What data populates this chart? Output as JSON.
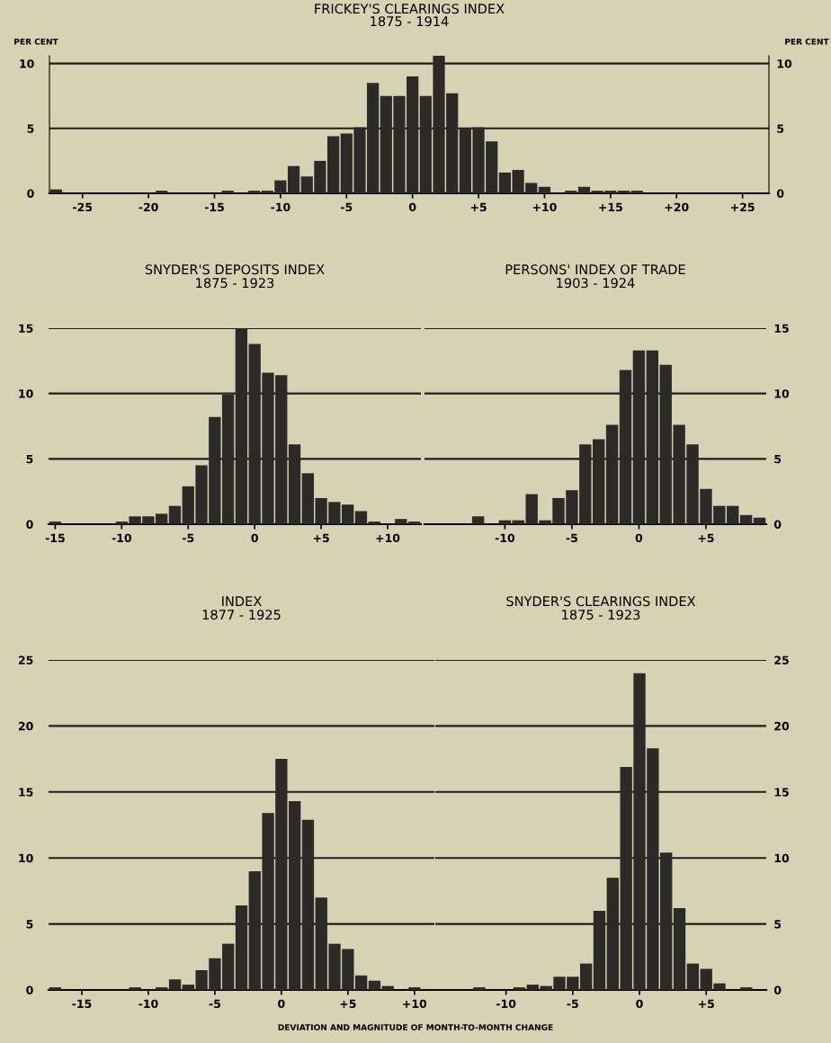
{
  "chart_data": [
    {
      "type": "histogram",
      "title": "FRICKEY'S CLEARINGS INDEX",
      "subtitle": "1875 - 1914",
      "ylabel": "PER CENT",
      "y2label": "PER CENT",
      "bins": [
        -27.5,
        -26.5,
        -25.5,
        -24.5,
        -23.5,
        -22.5,
        -21.5,
        -20.5,
        -19.5,
        -18.5,
        -17.5,
        -16.5,
        -15.5,
        -14.5,
        -13.5,
        -12.5,
        -11.5,
        -10.5,
        -9.5,
        -8.5,
        -7.5,
        -6.5,
        -5.5,
        -4.5,
        -3.5,
        -2.5,
        -1.5,
        -0.5,
        0.5,
        1.5,
        2.5,
        3.5,
        4.5,
        5.5,
        6.5,
        7.5,
        8.5,
        9.5,
        10.5,
        11.5,
        12.5,
        13.5,
        14.5,
        15.5,
        16.5,
        17.5
      ],
      "series": [
        {
          "color": "#2b2a27",
          "axis": "y",
          "values": [
            0.3,
            0,
            0,
            0,
            0,
            0,
            0,
            0,
            0.2,
            0,
            0,
            0,
            0,
            0.2,
            0,
            0.2,
            0.2,
            1.0,
            2.1,
            1.3,
            2.5,
            4.4,
            4.6,
            5.1,
            8.5,
            7.5,
            7.5,
            9.0,
            7.5,
            10.6,
            7.7,
            5.0,
            5.1,
            4.0,
            1.6,
            1.8,
            0.8,
            0.5,
            0,
            0.2,
            0.5,
            0.2,
            0.2,
            0.2,
            0.2
          ]
        }
      ],
      "xlim": [
        -27.5,
        27
      ],
      "xticks": [
        -25,
        -20,
        -15,
        -10,
        -5,
        0,
        {
          "value": 5,
          "label": "+5"
        },
        {
          "value": 10,
          "label": "+10"
        },
        {
          "value": 15,
          "label": "+15"
        },
        {
          "value": 20,
          "label": "+20"
        },
        {
          "value": 25,
          "label": "+25"
        }
      ],
      "ylim": [
        0,
        10.6
      ],
      "yticks": [
        0,
        5,
        10
      ],
      "y2lim": [
        0,
        10.6
      ],
      "y2ticks": [
        0,
        5,
        10
      ],
      "grid": "y"
    },
    {
      "type": "histogram",
      "title": "SNYDER'S DEPOSITS INDEX",
      "subtitle": "1875 - 1923",
      "bins": [
        -15.5,
        -14.5,
        -13.5,
        -12.5,
        -11.5,
        -10.5,
        -9.5,
        -8.5,
        -7.5,
        -6.5,
        -5.5,
        -4.5,
        -3.5,
        -2.5,
        -1.5,
        -0.5,
        0.5,
        1.5,
        2.5,
        3.5,
        4.5,
        5.5,
        6.5,
        7.5,
        8.5,
        9.5,
        10.5,
        11.5,
        12.5
      ],
      "series": [
        {
          "color": "#2b2a27",
          "axis": "y",
          "values": [
            0.2,
            0,
            0,
            0,
            0,
            0.2,
            0.6,
            0.6,
            0.8,
            1.4,
            2.9,
            4.5,
            8.2,
            9.9,
            15.0,
            13.8,
            11.6,
            11.4,
            6.1,
            3.9,
            2.0,
            1.7,
            1.5,
            1.0,
            0.2,
            0,
            0.4,
            0.2
          ]
        }
      ],
      "xlim": [
        -15.5,
        12.5
      ],
      "xticks": [
        -15,
        -10,
        -5,
        0,
        {
          "value": 5,
          "label": "+5"
        },
        {
          "value": 10,
          "label": "+10"
        }
      ],
      "ylim": [
        0,
        15
      ],
      "yticks": [
        0,
        5,
        10,
        15
      ],
      "grid": "y"
    },
    {
      "type": "histogram",
      "title": "PERSONS' INDEX OF TRADE",
      "subtitle": "1903 - 1924",
      "bins": [
        -12.5,
        -11.5,
        -10.5,
        -9.5,
        -8.5,
        -7.5,
        -6.5,
        -5.5,
        -4.5,
        -3.5,
        -2.5,
        -1.5,
        -0.5,
        0.5,
        1.5,
        2.5,
        3.5,
        4.5,
        5.5,
        6.5,
        7.5,
        8.5,
        9.5
      ],
      "series": [
        {
          "color": "#2b2a27",
          "axis": "y2",
          "values": [
            0.6,
            0,
            0.3,
            0.3,
            2.3,
            0.3,
            2.0,
            2.6,
            6.1,
            6.5,
            7.6,
            11.8,
            13.3,
            13.3,
            12.2,
            7.6,
            6.1,
            2.7,
            1.4,
            1.4,
            0.7,
            0.5
          ]
        }
      ],
      "xlim": [
        -16,
        9.5
      ],
      "xticks": [
        -10,
        -5,
        0,
        {
          "value": 5,
          "label": "+5"
        }
      ],
      "y2lim": [
        0,
        15
      ],
      "y2ticks": [
        0,
        5,
        10,
        15
      ],
      "grid": "y"
    },
    {
      "type": "histogram",
      "title": "INDEX",
      "subtitle": "1877 - 1925",
      "xlabel": "DEVIATION AND MAGNITUDE OF MONTH-TO-MONTH CHANGE",
      "bins": [
        -17.5,
        -16.5,
        -15.5,
        -14.5,
        -13.5,
        -12.5,
        -11.5,
        -10.5,
        -9.5,
        -8.5,
        -7.5,
        -6.5,
        -5.5,
        -4.5,
        -3.5,
        -2.5,
        -1.5,
        -0.5,
        0.5,
        1.5,
        2.5,
        3.5,
        4.5,
        5.5,
        6.5,
        7.5,
        8.5,
        9.5,
        10.5
      ],
      "series": [
        {
          "color": "#2b2a27",
          "axis": "y",
          "values": [
            0.2,
            0,
            0,
            0,
            0,
            0,
            0.2,
            0,
            0.2,
            0.8,
            0.4,
            1.5,
            2.4,
            3.5,
            6.4,
            9.0,
            13.4,
            17.5,
            14.3,
            12.9,
            7.0,
            3.5,
            3.1,
            1.1,
            0.7,
            0.3,
            0,
            0.2
          ]
        }
      ],
      "xlim": [
        -17.5,
        11.5
      ],
      "xticks": [
        -15,
        -10,
        -5,
        0,
        {
          "value": 5,
          "label": "+5"
        },
        {
          "value": 10,
          "label": "+10"
        }
      ],
      "ylim": [
        0,
        25
      ],
      "yticks": [
        0,
        5,
        10,
        15,
        20,
        25
      ],
      "grid": "y"
    },
    {
      "type": "histogram",
      "title": "SNYDER'S CLEARINGS INDEX",
      "subtitle": "1875 - 1923",
      "bins": [
        -12.5,
        -11.5,
        -10.5,
        -9.5,
        -8.5,
        -7.5,
        -6.5,
        -5.5,
        -4.5,
        -3.5,
        -2.5,
        -1.5,
        -0.5,
        0.5,
        1.5,
        2.5,
        3.5,
        4.5,
        5.5,
        6.5,
        7.5,
        8.5
      ],
      "series": [
        {
          "color": "#2b2a27",
          "axis": "y2",
          "values": [
            0.2,
            0,
            0,
            0.2,
            0.4,
            0.3,
            1.0,
            1.0,
            2.0,
            6.0,
            8.5,
            16.9,
            24.0,
            18.3,
            10.4,
            6.2,
            2.0,
            1.6,
            0.5,
            0,
            0.2
          ]
        }
      ],
      "xlim": [
        -15.3,
        9.5
      ],
      "xticks": [
        -10,
        -5,
        0,
        {
          "value": 5,
          "label": "+5"
        }
      ],
      "y2lim": [
        0,
        25
      ],
      "y2ticks": [
        0,
        5,
        10,
        15,
        20,
        25
      ],
      "grid": "y"
    }
  ]
}
